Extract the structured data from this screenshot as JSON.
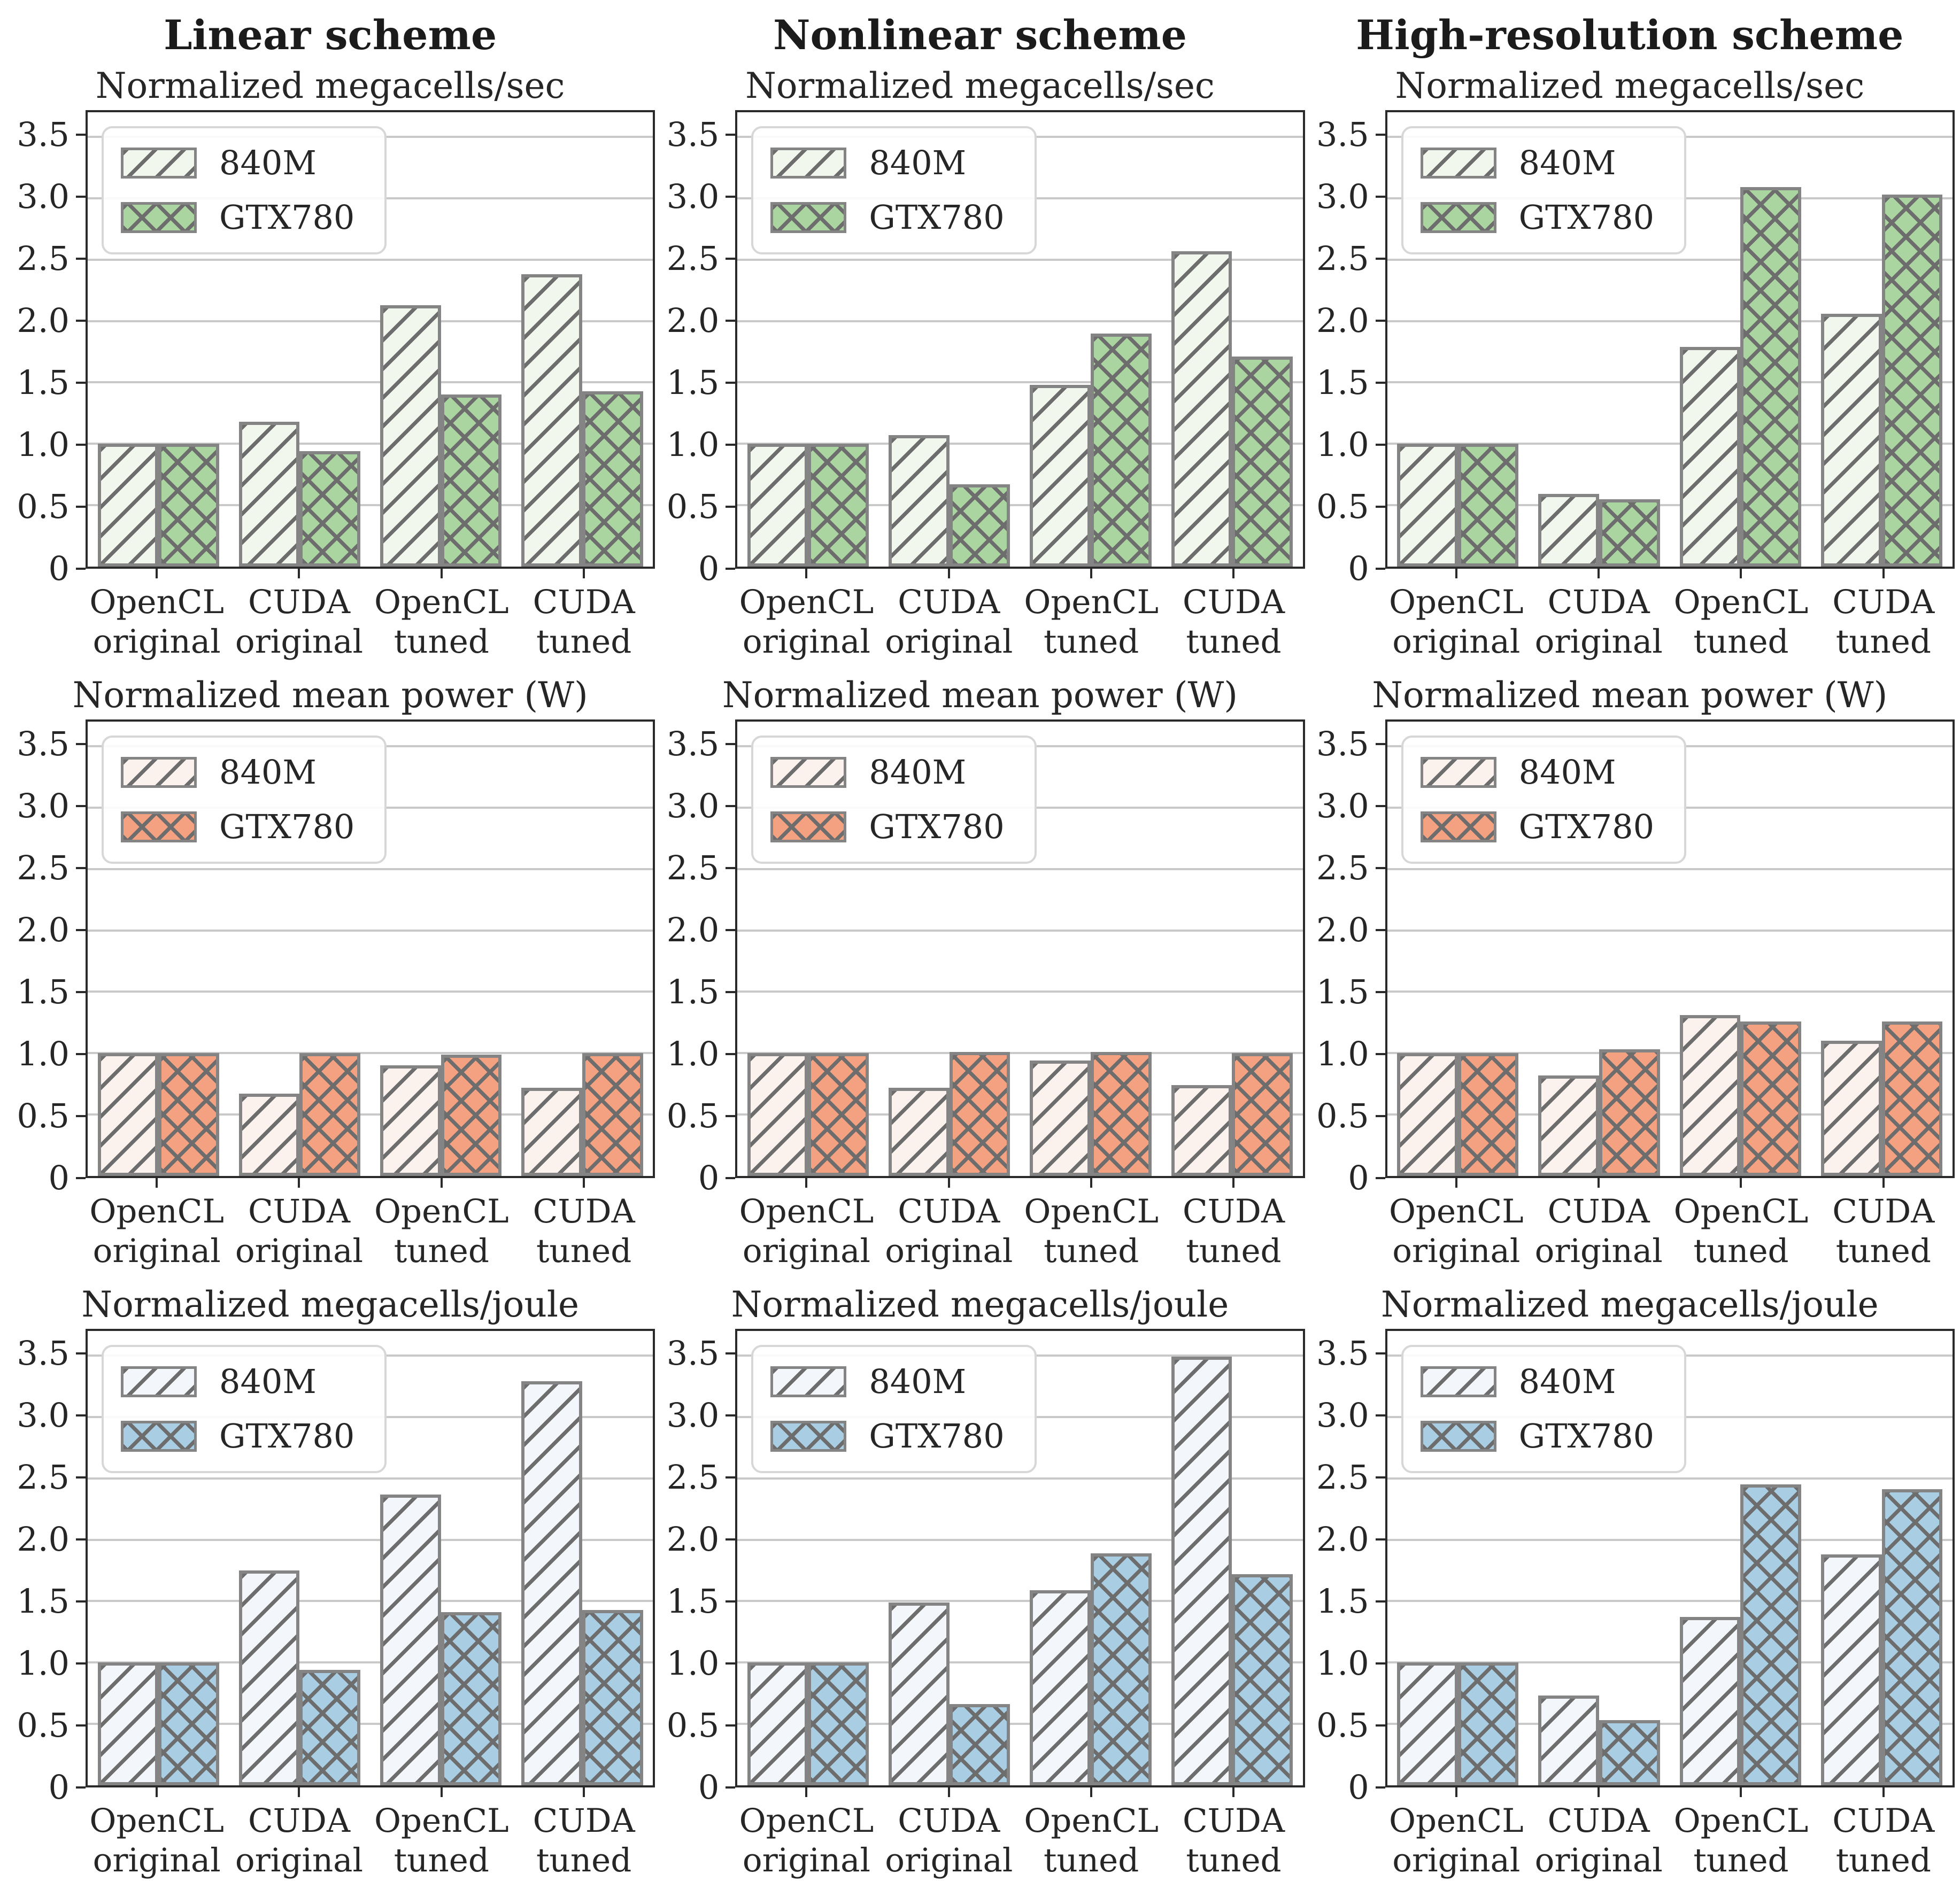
{
  "figure": {
    "column_titles": [
      "Linear scheme",
      "Nonlinear scheme",
      "High-resolution scheme"
    ]
  },
  "axes": {
    "ytick_labels": [
      "0",
      "0.5",
      "1.0",
      "1.5",
      "2.0",
      "2.5",
      "3.0",
      "3.5"
    ],
    "ytick_values": [
      0,
      0.5,
      1.0,
      1.5,
      2.0,
      2.5,
      3.0,
      3.5
    ],
    "ymax": 3.7
  },
  "style_colors": {
    "hatch_line": "#6d6d6d",
    "bar_edge": "#848484",
    "gridline": "#c9c9c9",
    "spine": "#2a2a2a",
    "green": "#abd5a0",
    "salmon": "#f4a181",
    "blue": "#a9cde3"
  },
  "chart_data": [
    {
      "type": "bar",
      "column": "Linear scheme",
      "title": "Normalized megacells/sec",
      "categories": [
        "OpenCL\noriginal",
        "CUDA\noriginal",
        "OpenCL\ntuned",
        "CUDA\ntuned"
      ],
      "series": [
        {
          "name": "840M",
          "fill": "#f2f7ee",
          "hatch": "/",
          "values": [
            1.0,
            1.18,
            2.13,
            2.38
          ]
        },
        {
          "name": "GTX780",
          "fill": "#abd5a0",
          "hatch": "x",
          "values": [
            1.0,
            0.94,
            1.4,
            1.43
          ]
        }
      ],
      "ylim": [
        0,
        3.7
      ],
      "yticks": [
        0,
        0.5,
        1.0,
        1.5,
        2.0,
        2.5,
        3.0,
        3.5
      ],
      "grid": true,
      "legend_position": "upper left"
    },
    {
      "type": "bar",
      "column": "Nonlinear scheme",
      "title": "Normalized megacells/sec",
      "categories": [
        "OpenCL\noriginal",
        "CUDA\noriginal",
        "OpenCL\ntuned",
        "CUDA\ntuned"
      ],
      "series": [
        {
          "name": "840M",
          "fill": "#f2f7ee",
          "hatch": "/",
          "values": [
            1.0,
            1.07,
            1.48,
            2.57
          ]
        },
        {
          "name": "GTX780",
          "fill": "#abd5a0",
          "hatch": "x",
          "values": [
            1.0,
            0.67,
            1.9,
            1.71
          ]
        }
      ],
      "ylim": [
        0,
        3.7
      ],
      "yticks": [
        0,
        0.5,
        1.0,
        1.5,
        2.0,
        2.5,
        3.0,
        3.5
      ],
      "grid": true,
      "legend_position": "upper left"
    },
    {
      "type": "bar",
      "column": "High-resolution scheme",
      "title": "Normalized megacells/sec",
      "categories": [
        "OpenCL\noriginal",
        "CUDA\noriginal",
        "OpenCL\ntuned",
        "CUDA\ntuned"
      ],
      "series": [
        {
          "name": "840M",
          "fill": "#f2f7ee",
          "hatch": "/",
          "values": [
            1.0,
            0.59,
            1.79,
            2.06
          ]
        },
        {
          "name": "GTX780",
          "fill": "#abd5a0",
          "hatch": "x",
          "values": [
            1.0,
            0.55,
            3.09,
            3.03
          ]
        }
      ],
      "ylim": [
        0,
        3.7
      ],
      "yticks": [
        0,
        0.5,
        1.0,
        1.5,
        2.0,
        2.5,
        3.0,
        3.5
      ],
      "grid": true,
      "legend_position": "upper left"
    },
    {
      "type": "bar",
      "column": "Linear scheme",
      "title": "Normalized mean power (W)",
      "categories": [
        "OpenCL\noriginal",
        "CUDA\noriginal",
        "OpenCL\ntuned",
        "CUDA\ntuned"
      ],
      "series": [
        {
          "name": "840M",
          "fill": "#fbf2ed",
          "hatch": "/",
          "values": [
            1.0,
            0.67,
            0.9,
            0.72
          ]
        },
        {
          "name": "GTX780",
          "fill": "#f4a181",
          "hatch": "x",
          "values": [
            1.0,
            1.0,
            0.99,
            1.0
          ]
        }
      ],
      "ylim": [
        0,
        3.7
      ],
      "yticks": [
        0,
        0.5,
        1.0,
        1.5,
        2.0,
        2.5,
        3.0,
        3.5
      ],
      "grid": true,
      "legend_position": "upper left"
    },
    {
      "type": "bar",
      "column": "Nonlinear scheme",
      "title": "Normalized mean power (W)",
      "categories": [
        "OpenCL\noriginal",
        "CUDA\noriginal",
        "OpenCL\ntuned",
        "CUDA\ntuned"
      ],
      "series": [
        {
          "name": "840M",
          "fill": "#fbf2ed",
          "hatch": "/",
          "values": [
            1.0,
            0.72,
            0.94,
            0.74
          ]
        },
        {
          "name": "GTX780",
          "fill": "#f4a181",
          "hatch": "x",
          "values": [
            1.0,
            1.01,
            1.01,
            1.0
          ]
        }
      ],
      "ylim": [
        0,
        3.7
      ],
      "yticks": [
        0,
        0.5,
        1.0,
        1.5,
        2.0,
        2.5,
        3.0,
        3.5
      ],
      "grid": true,
      "legend_position": "upper left"
    },
    {
      "type": "bar",
      "column": "High-resolution scheme",
      "title": "Normalized mean power (W)",
      "categories": [
        "OpenCL\noriginal",
        "CUDA\noriginal",
        "OpenCL\ntuned",
        "CUDA\ntuned"
      ],
      "series": [
        {
          "name": "840M",
          "fill": "#fbf2ed",
          "hatch": "/",
          "values": [
            1.0,
            0.82,
            1.31,
            1.1
          ]
        },
        {
          "name": "GTX780",
          "fill": "#f4a181",
          "hatch": "x",
          "values": [
            1.0,
            1.03,
            1.26,
            1.26
          ]
        }
      ],
      "ylim": [
        0,
        3.7
      ],
      "yticks": [
        0,
        0.5,
        1.0,
        1.5,
        2.0,
        2.5,
        3.0,
        3.5
      ],
      "grid": true,
      "legend_position": "upper left"
    },
    {
      "type": "bar",
      "column": "Linear scheme",
      "title": "Normalized megacells/joule",
      "categories": [
        "OpenCL\noriginal",
        "CUDA\noriginal",
        "OpenCL\ntuned",
        "CUDA\ntuned"
      ],
      "series": [
        {
          "name": "840M",
          "fill": "#f3f7fb",
          "hatch": "/",
          "values": [
            1.0,
            1.75,
            2.37,
            3.29
          ]
        },
        {
          "name": "GTX780",
          "fill": "#a9cde3",
          "hatch": "x",
          "values": [
            1.0,
            0.94,
            1.41,
            1.43
          ]
        }
      ],
      "ylim": [
        0,
        3.7
      ],
      "yticks": [
        0,
        0.5,
        1.0,
        1.5,
        2.0,
        2.5,
        3.0,
        3.5
      ],
      "grid": true,
      "legend_position": "upper left"
    },
    {
      "type": "bar",
      "column": "Nonlinear scheme",
      "title": "Normalized megacells/joule",
      "categories": [
        "OpenCL\noriginal",
        "CUDA\noriginal",
        "OpenCL\ntuned",
        "CUDA\ntuned"
      ],
      "series": [
        {
          "name": "840M",
          "fill": "#f3f7fb",
          "hatch": "/",
          "values": [
            1.0,
            1.49,
            1.59,
            3.49
          ]
        },
        {
          "name": "GTX780",
          "fill": "#a9cde3",
          "hatch": "x",
          "values": [
            1.0,
            0.66,
            1.89,
            1.72
          ]
        }
      ],
      "ylim": [
        0,
        3.7
      ],
      "yticks": [
        0,
        0.5,
        1.0,
        1.5,
        2.0,
        2.5,
        3.0,
        3.5
      ],
      "grid": true,
      "legend_position": "upper left"
    },
    {
      "type": "bar",
      "column": "High-resolution scheme",
      "title": "Normalized megacells/joule",
      "categories": [
        "OpenCL\noriginal",
        "CUDA\noriginal",
        "OpenCL\ntuned",
        "CUDA\ntuned"
      ],
      "series": [
        {
          "name": "840M",
          "fill": "#f3f7fb",
          "hatch": "/",
          "values": [
            1.0,
            0.73,
            1.37,
            1.88
          ]
        },
        {
          "name": "GTX780",
          "fill": "#a9cde3",
          "hatch": "x",
          "values": [
            1.0,
            0.53,
            2.45,
            2.41
          ]
        }
      ],
      "ylim": [
        0,
        3.7
      ],
      "yticks": [
        0,
        0.5,
        1.0,
        1.5,
        2.0,
        2.5,
        3.0,
        3.5
      ],
      "grid": true,
      "legend_position": "upper left"
    }
  ]
}
